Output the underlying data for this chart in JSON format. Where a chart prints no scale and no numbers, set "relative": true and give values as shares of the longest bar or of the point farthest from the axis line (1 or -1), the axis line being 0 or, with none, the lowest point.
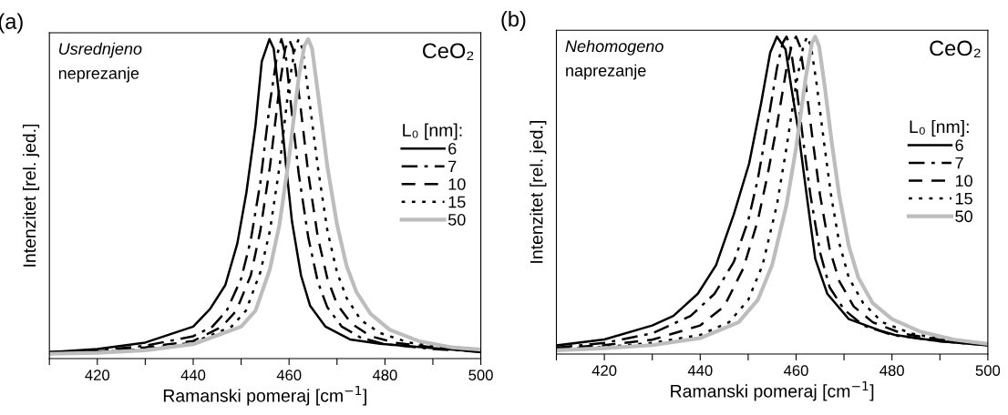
{
  "chart_data": [
    {
      "type": "line",
      "title": "(a)",
      "xlabel": "Ramanski pomeraj [cm$^{−1}$]",
      "ylabel": "Intenzitet [rel. jed.]",
      "relative": true,
      "xlim": [
        410,
        500
      ],
      "xticks": [
        {
          "value": 410,
          "label": null
        },
        420,
        {
          "value": 430,
          "label": null
        },
        440,
        {
          "value": 450,
          "label": null
        },
        460,
        {
          "value": 470,
          "label": null
        },
        480,
        {
          "value": 490,
          "label": null
        },
        500
      ],
      "legend": "right",
      "legend_title": "L₀ [nm]:",
      "grid": false,
      "annotations": [
        "Usrednjeno",
        "neprezanje",
        "CeO₂"
      ],
      "series": [
        {
          "name": "6",
          "color": "#000000",
          "line_style": "solid",
          "x": [
            410,
            420,
            430,
            436,
            440,
            443.5,
            446.7,
            449.2,
            451.1,
            453,
            454.3,
            455.9,
            456.8,
            458.1,
            459.4,
            460.6,
            462.5,
            464.4,
            467.6,
            472.7,
            479,
            490,
            495,
            500
          ],
          "values": [
            0.02,
            0.03,
            0.05,
            0.08,
            0.1,
            0.155,
            0.23,
            0.36,
            0.52,
            0.73,
            0.93,
            1.0,
            0.97,
            0.8,
            0.6,
            0.43,
            0.26,
            0.165,
            0.1,
            0.06,
            0.046,
            0.033,
            0.027,
            0.02
          ]
        },
        {
          "name": "7",
          "color": "#000000",
          "line_style": "dashdot",
          "x": [
            410,
            420,
            430,
            440,
            444,
            447,
            450,
            452,
            454,
            456,
            457.5,
            458.4,
            459.3,
            460.5,
            462,
            464,
            466,
            468,
            471,
            475,
            480,
            490,
            500
          ],
          "values": [
            0.02,
            0.025,
            0.04,
            0.07,
            0.1,
            0.15,
            0.25,
            0.37,
            0.55,
            0.8,
            0.95,
            1.0,
            0.95,
            0.78,
            0.58,
            0.38,
            0.24,
            0.16,
            0.1,
            0.065,
            0.045,
            0.03,
            0.022
          ]
        },
        {
          "name": "10",
          "color": "#000000",
          "line_style": "dashed",
          "x": [
            410,
            420,
            430,
            440,
            446,
            449,
            452,
            454,
            456,
            458,
            459.2,
            460,
            460.8,
            462.3,
            464,
            466,
            468,
            470,
            473,
            477,
            482,
            490,
            500
          ],
          "values": [
            0.02,
            0.022,
            0.035,
            0.055,
            0.1,
            0.15,
            0.26,
            0.4,
            0.6,
            0.85,
            0.97,
            1.0,
            0.97,
            0.8,
            0.58,
            0.38,
            0.25,
            0.17,
            0.11,
            0.07,
            0.05,
            0.035,
            0.024
          ]
        },
        {
          "name": "15",
          "color": "#000000",
          "line_style": "dotted",
          "x": [
            410,
            420,
            430,
            440,
            448,
            451,
            454,
            456,
            458,
            460,
            461.2,
            462,
            462.8,
            464.3,
            466,
            468,
            470,
            472,
            475,
            479,
            485,
            492,
            500
          ],
          "values": [
            0.018,
            0.02,
            0.03,
            0.05,
            0.1,
            0.15,
            0.27,
            0.4,
            0.6,
            0.86,
            0.97,
            1.0,
            0.97,
            0.8,
            0.6,
            0.4,
            0.27,
            0.19,
            0.12,
            0.08,
            0.05,
            0.035,
            0.026
          ]
        },
        {
          "name": "50",
          "color": "#bdbdbd",
          "line_style": "solid",
          "x": [
            410,
            420,
            430,
            440,
            450,
            453,
            456,
            458,
            460,
            462,
            463.2,
            464,
            464.8,
            466.3,
            468,
            470,
            472,
            474,
            477,
            481,
            487,
            494,
            500
          ],
          "values": [
            0.015,
            0.018,
            0.026,
            0.045,
            0.1,
            0.15,
            0.28,
            0.42,
            0.63,
            0.88,
            0.98,
            1.0,
            0.97,
            0.8,
            0.6,
            0.42,
            0.29,
            0.21,
            0.14,
            0.09,
            0.055,
            0.035,
            0.028
          ]
        }
      ]
    },
    {
      "type": "line",
      "title": "(b)",
      "xlabel": "Ramanski pomeraj [cm$^{−1}$]",
      "ylabel": "Intenzitet [rel. jed.]",
      "relative": true,
      "xlim": [
        410,
        500
      ],
      "xticks": [
        {
          "value": 410,
          "label": null
        },
        420,
        {
          "value": 430,
          "label": null
        },
        440,
        {
          "value": 450,
          "label": null
        },
        460,
        {
          "value": 470,
          "label": null
        },
        480,
        {
          "value": 490,
          "label": null
        },
        500
      ],
      "legend": "right",
      "legend_title": "L₀ [nm]:",
      "grid": false,
      "annotations": [
        "Nehomogeno",
        "naprezanje",
        "CeO₂"
      ],
      "series": [
        {
          "name": "6",
          "color": "#000000",
          "line_style": "solid",
          "x": [
            410,
            420,
            430,
            434.4,
            439.5,
            443.3,
            447,
            450.2,
            452.7,
            454.6,
            456,
            457.8,
            459,
            460.4,
            462.3,
            464,
            466.5,
            471,
            477.5,
            480.6,
            490,
            500
          ],
          "values": [
            0.027,
            0.046,
            0.09,
            0.12,
            0.19,
            0.28,
            0.44,
            0.6,
            0.79,
            0.95,
            1.0,
            0.96,
            0.84,
            0.71,
            0.49,
            0.3,
            0.19,
            0.11,
            0.074,
            0.06,
            0.04,
            0.027
          ]
        },
        {
          "name": "7",
          "color": "#000000",
          "line_style": "dashdot",
          "x": [
            410,
            420,
            430,
            438,
            443,
            447,
            450,
            452,
            454,
            456,
            457.2,
            458,
            458.8,
            460,
            461.5,
            463,
            465,
            467,
            470,
            474,
            480,
            490,
            500
          ],
          "values": [
            0.02,
            0.035,
            0.065,
            0.12,
            0.19,
            0.29,
            0.42,
            0.55,
            0.72,
            0.9,
            0.98,
            1.0,
            0.97,
            0.85,
            0.67,
            0.5,
            0.32,
            0.21,
            0.14,
            0.09,
            0.06,
            0.04,
            0.028
          ]
        },
        {
          "name": "10",
          "color": "#000000",
          "line_style": "dashed",
          "x": [
            410,
            420,
            430,
            440,
            445,
            449,
            452,
            454,
            456,
            458,
            459.2,
            460,
            460.8,
            462,
            463.5,
            465,
            467,
            469,
            472,
            476,
            482,
            490,
            500
          ],
          "values": [
            0.018,
            0.028,
            0.045,
            0.09,
            0.15,
            0.27,
            0.42,
            0.56,
            0.72,
            0.9,
            0.98,
            1.0,
            0.97,
            0.85,
            0.67,
            0.5,
            0.33,
            0.23,
            0.15,
            0.1,
            0.065,
            0.045,
            0.03
          ]
        },
        {
          "name": "15",
          "color": "#000000",
          "line_style": "dotted",
          "x": [
            410,
            420,
            430,
            440,
            446,
            450,
            453,
            456,
            458,
            460,
            461.5,
            462.3,
            463.1,
            464.3,
            465.8,
            467.3,
            469,
            471,
            474,
            478,
            484,
            492,
            500
          ],
          "values": [
            0.015,
            0.022,
            0.035,
            0.06,
            0.1,
            0.17,
            0.28,
            0.47,
            0.65,
            0.85,
            0.97,
            1.0,
            0.97,
            0.85,
            0.67,
            0.5,
            0.35,
            0.24,
            0.16,
            0.1,
            0.065,
            0.042,
            0.03
          ]
        },
        {
          "name": "50",
          "color": "#bdbdbd",
          "line_style": "solid",
          "x": [
            410,
            420,
            430,
            440,
            448,
            452,
            455,
            458,
            460,
            462,
            463.3,
            464,
            464.8,
            466,
            467.5,
            469,
            471,
            473,
            476,
            480,
            486,
            493,
            500
          ],
          "values": [
            0.012,
            0.018,
            0.028,
            0.05,
            0.1,
            0.17,
            0.28,
            0.47,
            0.65,
            0.87,
            0.98,
            1.0,
            0.97,
            0.84,
            0.66,
            0.5,
            0.34,
            0.24,
            0.16,
            0.11,
            0.07,
            0.045,
            0.032
          ]
        }
      ]
    }
  ]
}
